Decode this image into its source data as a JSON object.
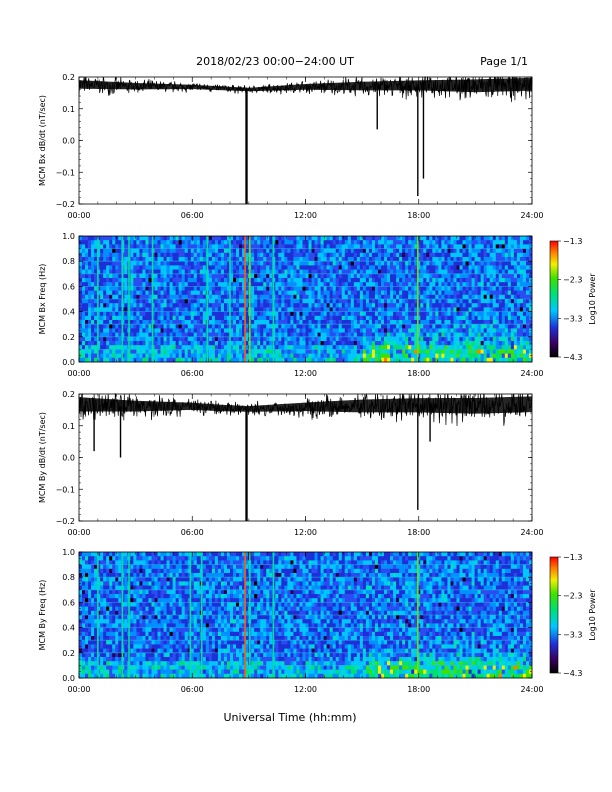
{
  "header": {
    "title": "2018/02/23  00:00−24:00 UT",
    "page": "Page 1/1"
  },
  "xaxis": {
    "label": "Universal Time (hh:mm)",
    "ticks": [
      "00:00",
      "06:00",
      "12:00",
      "18:00",
      "24:00"
    ],
    "range_hours": [
      0,
      24
    ]
  },
  "colors": {
    "trace": "#000000",
    "spectrogram_background": "#1a2fd6"
  },
  "chart_data": [
    {
      "type": "line",
      "ylabel": "MCM Bx dB/dt (nT/sec)",
      "ylim": [
        -0.2,
        0.2
      ],
      "yticks": [
        "0.2",
        "0.1",
        "0.0",
        "−0.1",
        "−0.2"
      ],
      "ytick_values": [
        0.2,
        0.1,
        0.0,
        -0.1,
        -0.2
      ],
      "baseline": [
        [
          0,
          0.175
        ],
        [
          3,
          0.17
        ],
        [
          6,
          0.168
        ],
        [
          7.5,
          0.164
        ],
        [
          9,
          0.16
        ],
        [
          12,
          0.168
        ],
        [
          15,
          0.17
        ],
        [
          18,
          0.172
        ],
        [
          21,
          0.17
        ],
        [
          24,
          0.175
        ]
      ],
      "noise": [
        [
          0,
          0.03
        ],
        [
          6,
          0.015
        ],
        [
          9,
          0.012
        ],
        [
          12,
          0.02
        ],
        [
          15,
          0.03
        ],
        [
          18,
          0.035
        ],
        [
          21,
          0.045
        ],
        [
          24,
          0.045
        ]
      ],
      "spikes": [
        {
          "x": 8.85,
          "y": -0.2
        },
        {
          "x": 8.9,
          "y": -0.2
        },
        {
          "x": 15.8,
          "y": 0.035
        },
        {
          "x": 17.95,
          "y": -0.175
        },
        {
          "x": 18.25,
          "y": -0.12
        }
      ]
    },
    {
      "type": "heatmap",
      "ylabel": "MCM Bx Freq (Hz)",
      "ylim": [
        0.0,
        1.0
      ],
      "yticks": [
        "1.0",
        "0.8",
        "0.6",
        "0.4",
        "0.2",
        "0.0"
      ],
      "ytick_values": [
        1.0,
        0.8,
        0.6,
        0.4,
        0.2,
        0.0
      ],
      "colorbar": {
        "label": "Log10 Power",
        "ticks": [
          "−1.3",
          "−2.3",
          "−3.3",
          "−4.3"
        ],
        "range": [
          -4.3,
          -1.3
        ]
      },
      "vertical_lines": [
        {
          "x": 1.0,
          "level": 0.55
        },
        {
          "x": 2.3,
          "level": 0.6
        },
        {
          "x": 2.65,
          "level": 0.55
        },
        {
          "x": 3.9,
          "level": 0.5
        },
        {
          "x": 6.8,
          "level": 0.5
        },
        {
          "x": 8.0,
          "level": 0.55
        },
        {
          "x": 8.8,
          "level": 0.85
        },
        {
          "x": 9.05,
          "level": 0.65
        },
        {
          "x": 10.3,
          "level": 0.5
        },
        {
          "x": 17.95,
          "level": 0.7
        }
      ],
      "activity_regions": [
        {
          "from": 15.0,
          "to": 24.0,
          "max_freq": 0.35
        }
      ]
    },
    {
      "type": "line",
      "ylabel": "MCM By dB/dt (nT/sec)",
      "ylim": [
        -0.2,
        0.2
      ],
      "yticks": [
        "0.2",
        "0.1",
        "0.0",
        "−0.1",
        "−0.2"
      ],
      "ytick_values": [
        0.2,
        0.1,
        0.0,
        -0.1,
        -0.2
      ],
      "baseline": [
        [
          0,
          0.165
        ],
        [
          3,
          0.16
        ],
        [
          6,
          0.16
        ],
        [
          7.5,
          0.155
        ],
        [
          9,
          0.152
        ],
        [
          12,
          0.158
        ],
        [
          15,
          0.16
        ],
        [
          18,
          0.162
        ],
        [
          21,
          0.16
        ],
        [
          24,
          0.165
        ]
      ],
      "noise": [
        [
          0,
          0.05
        ],
        [
          6,
          0.025
        ],
        [
          9,
          0.02
        ],
        [
          12,
          0.03
        ],
        [
          15,
          0.045
        ],
        [
          18,
          0.05
        ],
        [
          21,
          0.055
        ],
        [
          24,
          0.055
        ]
      ],
      "spikes": [
        {
          "x": 0.8,
          "y": 0.02
        },
        {
          "x": 2.2,
          "y": 0.0
        },
        {
          "x": 8.85,
          "y": -0.2
        },
        {
          "x": 8.9,
          "y": -0.2
        },
        {
          "x": 17.95,
          "y": -0.165
        },
        {
          "x": 18.6,
          "y": 0.05
        }
      ]
    },
    {
      "type": "heatmap",
      "ylabel": "MCM By Freq (Hz)",
      "ylim": [
        0.0,
        1.0
      ],
      "yticks": [
        "1.0",
        "0.8",
        "0.6",
        "0.4",
        "0.2",
        "0.0"
      ],
      "ytick_values": [
        1.0,
        0.8,
        0.6,
        0.4,
        0.2,
        0.0
      ],
      "colorbar": {
        "label": "Log10 Power",
        "ticks": [
          "−1.3",
          "−2.3",
          "−3.3",
          "−4.3"
        ],
        "range": [
          -4.3,
          -1.3
        ]
      },
      "vertical_lines": [
        {
          "x": 1.0,
          "level": 0.55
        },
        {
          "x": 2.3,
          "level": 0.6
        },
        {
          "x": 2.65,
          "level": 0.55
        },
        {
          "x": 5.9,
          "level": 0.5
        },
        {
          "x": 6.5,
          "level": 0.55
        },
        {
          "x": 8.8,
          "level": 0.85
        },
        {
          "x": 9.05,
          "level": 0.6
        },
        {
          "x": 10.3,
          "level": 0.55
        },
        {
          "x": 17.95,
          "level": 0.7
        }
      ],
      "activity_regions": [
        {
          "from": 15.0,
          "to": 24.0,
          "max_freq": 0.3
        }
      ]
    }
  ]
}
